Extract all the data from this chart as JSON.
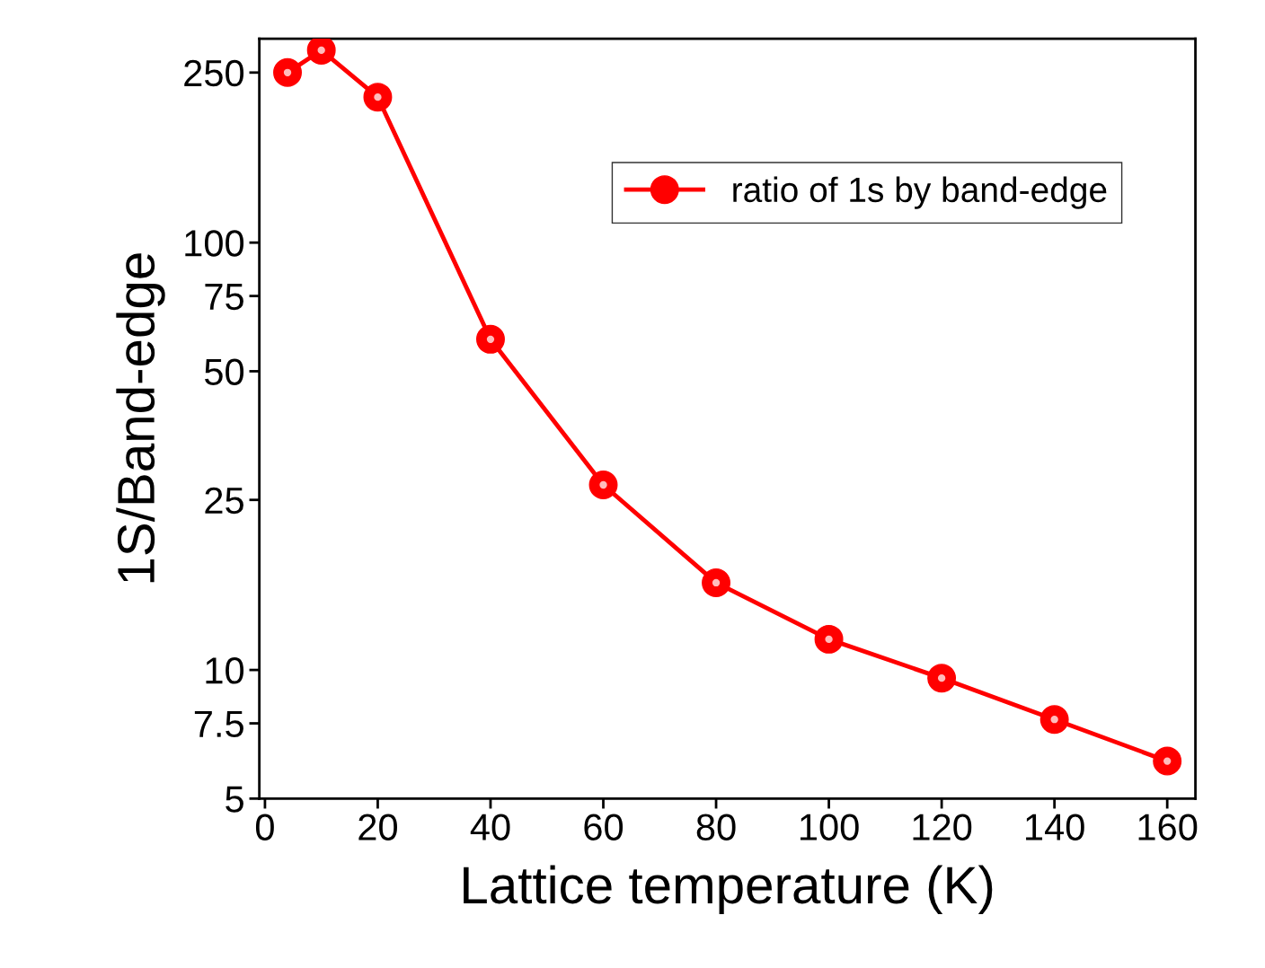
{
  "chart_data": {
    "type": "line",
    "xlabel": "Lattice temperature (K)",
    "ylabel": "1S/Band-edge",
    "x": [
      4,
      10,
      20,
      40,
      60,
      80,
      100,
      120,
      140,
      160
    ],
    "series": [
      {
        "name": "ratio of 1s by band-edge",
        "color": "#ff0000",
        "values": [
          250,
          282,
          219,
          59.4,
          27.1,
          16.0,
          11.8,
          9.57,
          7.66,
          6.12
        ]
      }
    ],
    "log": "y",
    "xlim": [
      -1,
      165
    ],
    "ylim": [
      5,
      300
    ],
    "xticks": [
      0,
      20,
      40,
      60,
      80,
      100,
      120,
      140,
      160
    ],
    "yticks": [
      5,
      {
        "value": 7.5,
        "label": "7.5"
      },
      10,
      25,
      50,
      75,
      100,
      250
    ],
    "grid": false,
    "legend": "top right",
    "marker": "circle",
    "line_style": "solid"
  }
}
